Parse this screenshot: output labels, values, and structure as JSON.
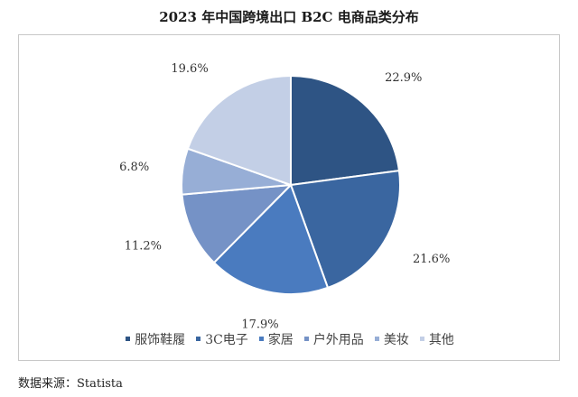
{
  "title": "2023 年中国跨境出口 B2C 电商品类分布",
  "source": "数据来源：Statista",
  "chart_data": {
    "type": "pie",
    "title": "2023 年中国跨境出口 B2C 电商品类分布",
    "slices": [
      {
        "name": "服饰鞋履",
        "value": 22.9,
        "label": "22.9%",
        "color": "#2e5484"
      },
      {
        "name": "3C电子",
        "value": 21.6,
        "label": "21.6%",
        "color": "#3a66a0"
      },
      {
        "name": "家居",
        "value": 17.9,
        "label": "17.9%",
        "color": "#4a7bbf"
      },
      {
        "name": "户外用品",
        "value": 11.2,
        "label": "11.2%",
        "color": "#7592c6"
      },
      {
        "name": "美妆",
        "value": 6.8,
        "label": "6.8%",
        "color": "#97aed6"
      },
      {
        "name": "其他",
        "value": 19.6,
        "label": "19.6%",
        "color": "#c3cfe6"
      }
    ],
    "start_angle": "12 o'clock",
    "direction": "clockwise",
    "legend_position": "bottom"
  }
}
